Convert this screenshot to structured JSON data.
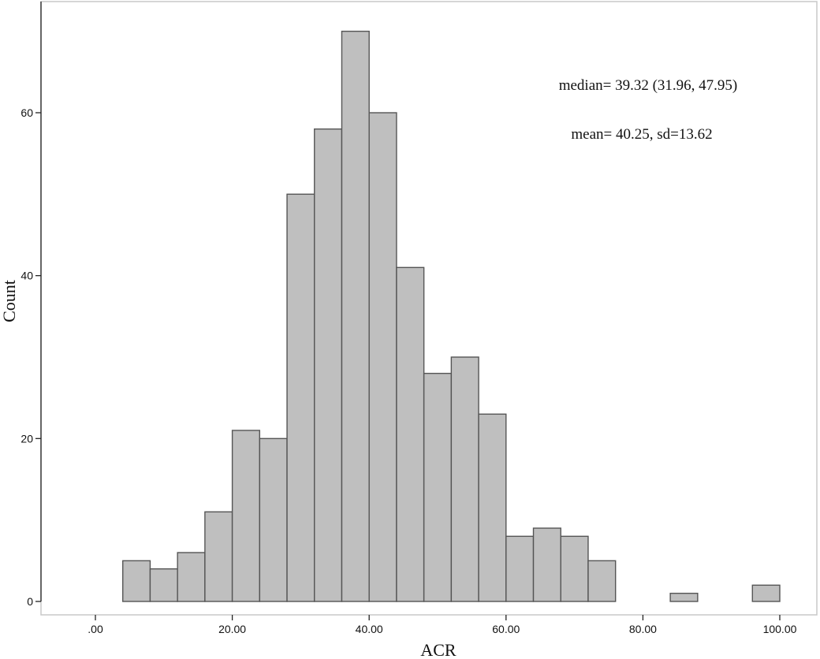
{
  "chart_data": {
    "type": "bar",
    "xlabel": "ACR",
    "ylabel": "Count",
    "bin_width": 4,
    "bins": [
      {
        "start": 4,
        "count": 5
      },
      {
        "start": 8,
        "count": 4
      },
      {
        "start": 12,
        "count": 6
      },
      {
        "start": 16,
        "count": 11
      },
      {
        "start": 20,
        "count": 21
      },
      {
        "start": 24,
        "count": 20
      },
      {
        "start": 28,
        "count": 50
      },
      {
        "start": 32,
        "count": 58
      },
      {
        "start": 36,
        "count": 70
      },
      {
        "start": 40,
        "count": 60
      },
      {
        "start": 44,
        "count": 41
      },
      {
        "start": 48,
        "count": 28
      },
      {
        "start": 52,
        "count": 30
      },
      {
        "start": 56,
        "count": 23
      },
      {
        "start": 60,
        "count": 8
      },
      {
        "start": 64,
        "count": 9
      },
      {
        "start": 68,
        "count": 8
      },
      {
        "start": 72,
        "count": 5
      },
      {
        "start": 84,
        "count": 1
      },
      {
        "start": 96,
        "count": 2
      }
    ],
    "xlim": [
      -8,
      104
    ],
    "ylim": [
      0,
      70
    ],
    "x_ticks": [
      {
        "value": 0,
        "label": ".00"
      },
      {
        "value": 20,
        "label": "20.00"
      },
      {
        "value": 40,
        "label": "40.00"
      },
      {
        "value": 60,
        "label": "60.00"
      },
      {
        "value": 80,
        "label": "80.00"
      },
      {
        "value": 100,
        "label": "100.00"
      }
    ],
    "y_ticks": [
      {
        "value": 0,
        "label": "0"
      },
      {
        "value": 20,
        "label": "20"
      },
      {
        "value": 40,
        "label": "40"
      },
      {
        "value": 60,
        "label": "60"
      }
    ],
    "annotations": [
      {
        "text": "median= 39.32 (31.96, 47.95)"
      },
      {
        "text": "mean= 40.25, sd=13.62"
      }
    ],
    "grid": false
  }
}
